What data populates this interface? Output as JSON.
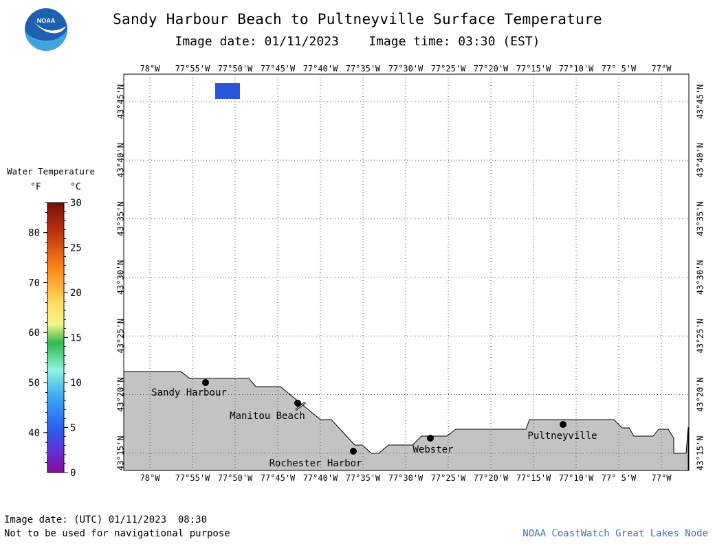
{
  "title": "Sandy Harbour Beach to Pultneyville Surface Temperature",
  "subtitle": "Image date: 01/11/2023    Image time: 03:30 (EST)",
  "logo_text": "NOAA",
  "legend": {
    "title": "Water Temperature",
    "unit_f": "°F",
    "unit_c": "°C",
    "f_ticks": [
      "80",
      "70",
      "60",
      "50",
      "40"
    ],
    "c_ticks": [
      "30",
      "25",
      "20",
      "15",
      "10",
      "5",
      "0"
    ],
    "gradient": [
      "#7a0c0c",
      "#c4370f",
      "#ff8c1a",
      "#ffe066",
      "#f3f58a",
      "#32b84a",
      "#8ef5e0",
      "#3aa8f0",
      "#2a5ef0",
      "#6a2ad0",
      "#8a0a9a"
    ]
  },
  "map": {
    "lon_labels": [
      "78°W",
      "77°55'W",
      "77°50'W",
      "77°45'W",
      "77°40'W",
      "77°35'W",
      "77°30'W",
      "77°25'W",
      "77°20'W",
      "77°15'W",
      "77°10'W",
      "77° 5'W",
      "77°W"
    ],
    "lat_labels": [
      "43°45'N",
      "43°40'N",
      "43°35'N",
      "43°30'N",
      "43°25'N",
      "43°20'N",
      "43°15'N"
    ],
    "places": [
      {
        "name": "Sandy Harbour"
      },
      {
        "name": "Manitou Beach"
      },
      {
        "name": "Rochester Harbor"
      },
      {
        "name": "Webster"
      },
      {
        "name": "Pultneyville"
      }
    ],
    "water_cell_color": "#2a56dc",
    "land_color": "#c3c3c3"
  },
  "footer": {
    "utc_date": "Image date: (UTC) 01/11/2023  08:30",
    "disclaimer": "Not to be used for navigational purpose",
    "credit": "NOAA CoastWatch Great Lakes Node"
  }
}
